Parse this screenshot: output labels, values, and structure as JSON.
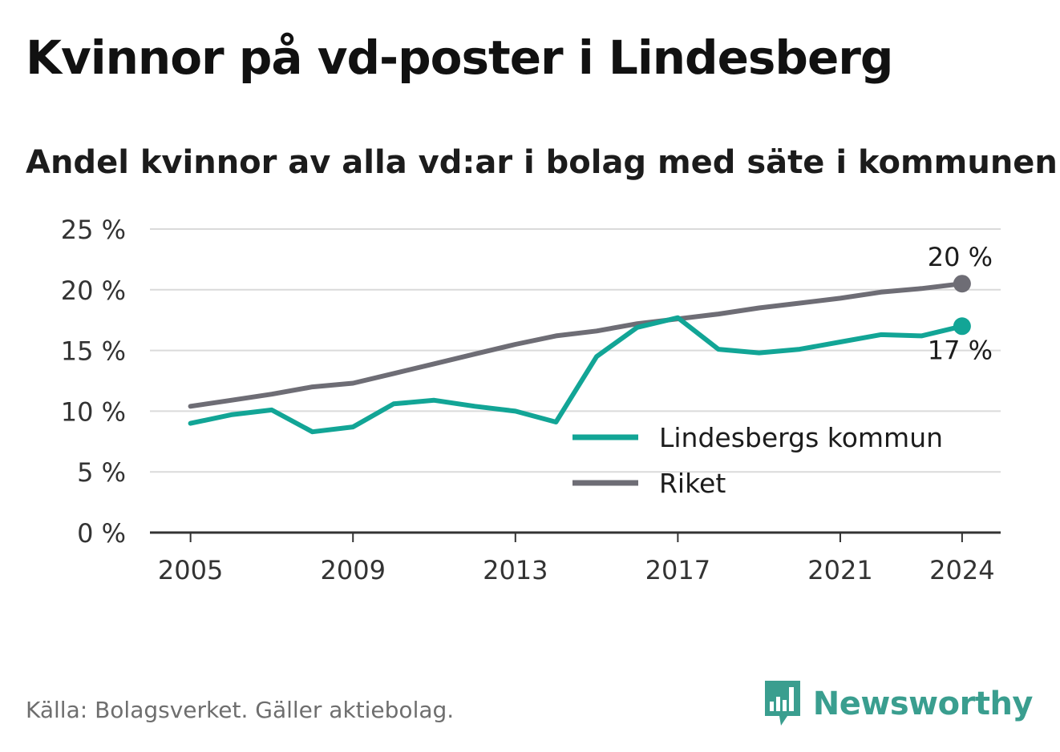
{
  "header": {
    "title": "Kvinnor på vd-poster i Lindesberg",
    "subtitle": "Andel kvinnor av alla vd:ar i bolag med säte i kommunen"
  },
  "footer": {
    "source": "Källa: Bolagsverket. Gäller aktiebolag.",
    "brand": "Newsworthy",
    "brand_color": "#3a9e8f"
  },
  "chart_data": {
    "type": "line",
    "x": [
      2005,
      2006,
      2007,
      2008,
      2009,
      2010,
      2011,
      2012,
      2013,
      2014,
      2015,
      2016,
      2017,
      2018,
      2019,
      2020,
      2021,
      2022,
      2023,
      2024
    ],
    "series": [
      {
        "name": "Lindesbergs kommun",
        "color": "#12a596",
        "values": [
          9.0,
          9.7,
          10.1,
          8.3,
          8.7,
          10.6,
          10.9,
          10.4,
          10.0,
          9.1,
          14.5,
          16.9,
          17.7,
          15.1,
          14.8,
          15.1,
          15.7,
          16.3,
          16.2,
          17.0
        ],
        "end_label": "17 %"
      },
      {
        "name": "Riket",
        "color": "#6e6d75",
        "values": [
          10.4,
          10.9,
          11.4,
          12.0,
          12.3,
          13.1,
          13.9,
          14.7,
          15.5,
          16.2,
          16.6,
          17.2,
          17.6,
          18.0,
          18.5,
          18.9,
          19.3,
          19.8,
          20.1,
          20.5
        ],
        "end_label": "20 %"
      }
    ],
    "x_ticks": [
      2005,
      2009,
      2013,
      2017,
      2021,
      2024
    ],
    "x_tick_labels": [
      "2005",
      "2009",
      "2013",
      "2017",
      "2021",
      "2024"
    ],
    "y_ticks": [
      0,
      5,
      10,
      15,
      20,
      25
    ],
    "y_tick_labels": [
      "0 %",
      "5 %",
      "10 %",
      "15 %",
      "20 %",
      "25 %"
    ],
    "xlim": [
      2004,
      2025
    ],
    "ylim": [
      0,
      25
    ],
    "xlabel": "",
    "ylabel": "",
    "grid": true,
    "legend_position": "bottom-right"
  }
}
